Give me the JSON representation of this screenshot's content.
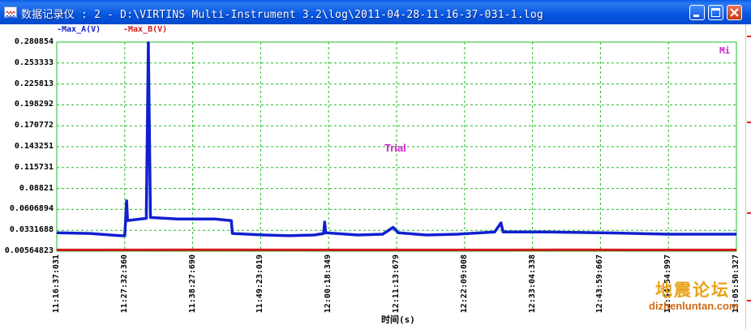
{
  "window": {
    "title": "数据记录仪 : 2 - D:\\VIRTINS Multi-Instrument 3.2\\log\\2011-04-28-11-16-37-031-1.log",
    "app_icon": "waveform-icon",
    "buttons": {
      "minimize": "minimize-icon",
      "maximize": "maximize-icon",
      "close": "close-icon"
    }
  },
  "annotations": {
    "trial": "Trial",
    "corner": "Mi",
    "watermark_cn": "地震论坛",
    "watermark_url": "dizhenluntan.com"
  },
  "colors": {
    "series_a": "#1020d0",
    "series_b": "#d01818",
    "grid": "#22bb22",
    "plot_border": "#22bb22"
  },
  "chart_data": {
    "type": "line",
    "title": "",
    "xlabel": "时间(s)",
    "ylabel": "",
    "legend": [
      "-Max_A(V)",
      "-Max_B(V)"
    ],
    "legend_placement": "top-left",
    "grid": true,
    "ylim": [
      0.00564823,
      0.280854
    ],
    "y_ticks": [
      "0.280854",
      "0.253333",
      "0.225813",
      "0.198292",
      "0.170772",
      "0.143251",
      "0.115731",
      "0.08821",
      "0.0606894",
      "0.0331688",
      "0.00564823"
    ],
    "x_ticks": [
      "11:16:37:031",
      "11:27:32:360",
      "11:38:27:690",
      "11:49:23:019",
      "12:00:18:349",
      "12:11:13:679",
      "12:22:09:008",
      "12:33:04:338",
      "12:43:59:667",
      "12:54:54:997",
      "13:05:50:327"
    ],
    "series": [
      {
        "name": "-Max_A(V)",
        "points": [
          [
            "11:16:37",
            0.03
          ],
          [
            "11:22:00",
            0.029
          ],
          [
            "11:26:50",
            0.026
          ],
          [
            "11:27:32",
            0.026
          ],
          [
            "11:27:40",
            0.045
          ],
          [
            "11:27:50",
            0.072
          ],
          [
            "11:28:00",
            0.046
          ],
          [
            "11:31:00",
            0.049
          ],
          [
            "11:31:20",
            0.28
          ],
          [
            "11:31:40",
            0.05
          ],
          [
            "11:36:00",
            0.048
          ],
          [
            "11:42:00",
            0.048
          ],
          [
            "11:44:40",
            0.046
          ],
          [
            "11:44:50",
            0.029
          ],
          [
            "11:50:00",
            0.027
          ],
          [
            "11:54:00",
            0.026
          ],
          [
            "11:58:00",
            0.027
          ],
          [
            "11:59:30",
            0.029
          ],
          [
            "11:59:40",
            0.044
          ],
          [
            "11:59:50",
            0.03
          ],
          [
            "12:05:00",
            0.027
          ],
          [
            "12:09:00",
            0.028
          ],
          [
            "12:10:40",
            0.037
          ],
          [
            "12:11:30",
            0.03
          ],
          [
            "12:16:00",
            0.027
          ],
          [
            "12:21:00",
            0.028
          ],
          [
            "12:27:00",
            0.031
          ],
          [
            "12:28:00",
            0.043
          ],
          [
            "12:28:20",
            0.031
          ],
          [
            "12:35:00",
            0.031
          ],
          [
            "12:44:00",
            0.03
          ],
          [
            "12:55:00",
            0.028
          ],
          [
            "13:05:50",
            0.028
          ]
        ]
      },
      {
        "name": "-Max_B(V)",
        "points": [
          [
            "11:16:37",
            0.0074
          ],
          [
            "11:40:00",
            0.0075
          ],
          [
            "12:10:00",
            0.0074
          ],
          [
            "12:40:00",
            0.0075
          ],
          [
            "13:05:50",
            0.0074
          ]
        ]
      }
    ]
  }
}
